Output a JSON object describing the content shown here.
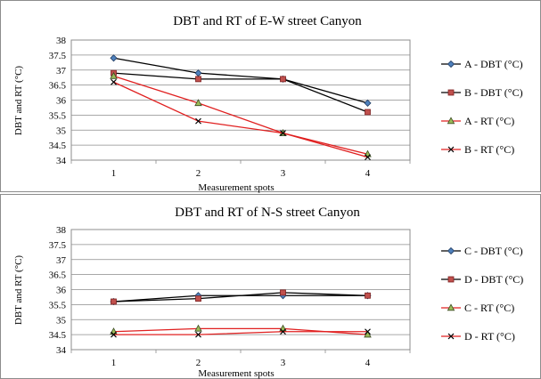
{
  "chart_data": [
    {
      "type": "line",
      "title": "DBT and RT of E-W street Canyon",
      "xlabel": "Measurement spots",
      "ylabel": "DBT and RT (°C)",
      "categories": [
        "1",
        "2",
        "3",
        "4"
      ],
      "ylim": [
        34,
        38
      ],
      "yticks": [
        "34",
        "34.5",
        "35",
        "35.5",
        "36",
        "36.5",
        "37",
        "37.5",
        "38"
      ],
      "grid": true,
      "legend_position": "right",
      "series": [
        {
          "name": "A - DBT (°C)",
          "values": [
            37.4,
            36.9,
            36.7,
            35.9
          ],
          "color": "#000000",
          "marker": "diamond",
          "marker_fill": "#4f81bd"
        },
        {
          "name": "B - DBT (°C)",
          "values": [
            36.9,
            36.7,
            36.7,
            35.6
          ],
          "color": "#000000",
          "marker": "square",
          "marker_fill": "#c0504d"
        },
        {
          "name": "A - RT (°C)",
          "values": [
            36.8,
            35.9,
            34.9,
            34.2
          ],
          "color": "#e02020",
          "marker": "triangle",
          "marker_fill": "#9bbb59"
        },
        {
          "name": "B - RT (°C)",
          "values": [
            36.6,
            35.3,
            34.9,
            34.1
          ],
          "color": "#e02020",
          "marker": "x",
          "marker_fill": "#000000"
        }
      ]
    },
    {
      "type": "line",
      "title": "DBT and RT of N-S street Canyon",
      "xlabel": "Measurement spots",
      "ylabel": "DBT and RT (°C)",
      "categories": [
        "1",
        "2",
        "3",
        "4"
      ],
      "ylim": [
        34,
        38
      ],
      "yticks": [
        "34",
        "34.5",
        "35",
        "35.5",
        "36",
        "36.5",
        "37",
        "37.5",
        "38"
      ],
      "grid": true,
      "legend_position": "right",
      "series": [
        {
          "name": "C - DBT (°C)",
          "values": [
            35.6,
            35.8,
            35.8,
            35.8
          ],
          "color": "#000000",
          "marker": "diamond",
          "marker_fill": "#4f81bd"
        },
        {
          "name": "D - DBT (°C)",
          "values": [
            35.6,
            35.7,
            35.9,
            35.8
          ],
          "color": "#000000",
          "marker": "square",
          "marker_fill": "#c0504d"
        },
        {
          "name": "C - RT (°C)",
          "values": [
            34.6,
            34.7,
            34.7,
            34.5
          ],
          "color": "#e02020",
          "marker": "triangle",
          "marker_fill": "#9bbb59"
        },
        {
          "name": "D - RT (°C)",
          "values": [
            34.5,
            34.5,
            34.6,
            34.6
          ],
          "color": "#e02020",
          "marker": "x",
          "marker_fill": "#000000"
        }
      ]
    }
  ]
}
